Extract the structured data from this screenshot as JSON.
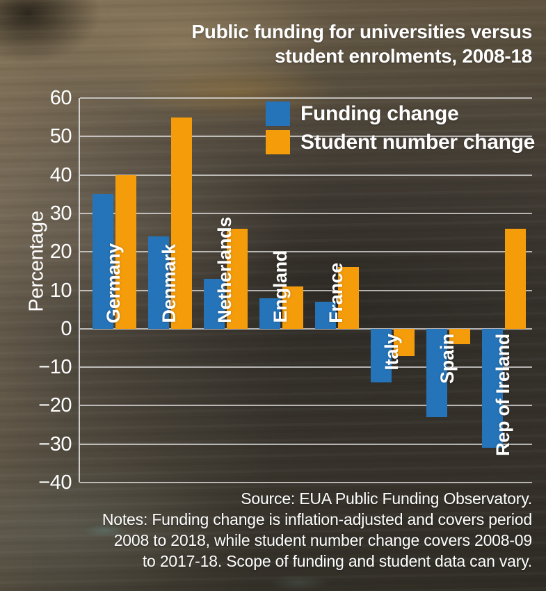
{
  "chart_data": {
    "type": "bar",
    "title": "Public funding for universities versus student enrolments, 2008-18",
    "title_lines": [
      "Public funding for universities versus",
      "student enrolments, 2008-18"
    ],
    "ylabel": "Percentage",
    "ylim": [
      -40,
      60
    ],
    "yticks": [
      60,
      50,
      40,
      30,
      20,
      10,
      0,
      -10,
      -20,
      -30,
      -40
    ],
    "ytick_labels": [
      "60",
      "50",
      "40",
      "30",
      "20",
      "10",
      "0",
      "−10",
      "−20",
      "−30",
      "−40"
    ],
    "grid": true,
    "legend_position": "top-right-inside",
    "categories": [
      "Germany",
      "Denmark",
      "Netherlands",
      "England",
      "France",
      "Italy",
      "Spain",
      "Rep of Ireland"
    ],
    "series": [
      {
        "name": "Funding change",
        "color": "#2574B9",
        "values": [
          35,
          24,
          13,
          8,
          7,
          -14,
          -23,
          -31
        ]
      },
      {
        "name": "Student number change",
        "color": "#F59C0A",
        "values": [
          40,
          55,
          26,
          11,
          16,
          -7,
          -4,
          26
        ]
      }
    ],
    "footer_lines": [
      "Source: EUA Public Funding Observatory.",
      "Notes: Funding change is inflation-adjusted and covers period",
      "2008 to 2018, while student number change covers 2008-09",
      "to 2017-18. Scope of funding and student data can vary."
    ],
    "text_color": "#FFFFFF",
    "gridline_color": "#E1E1E1"
  }
}
